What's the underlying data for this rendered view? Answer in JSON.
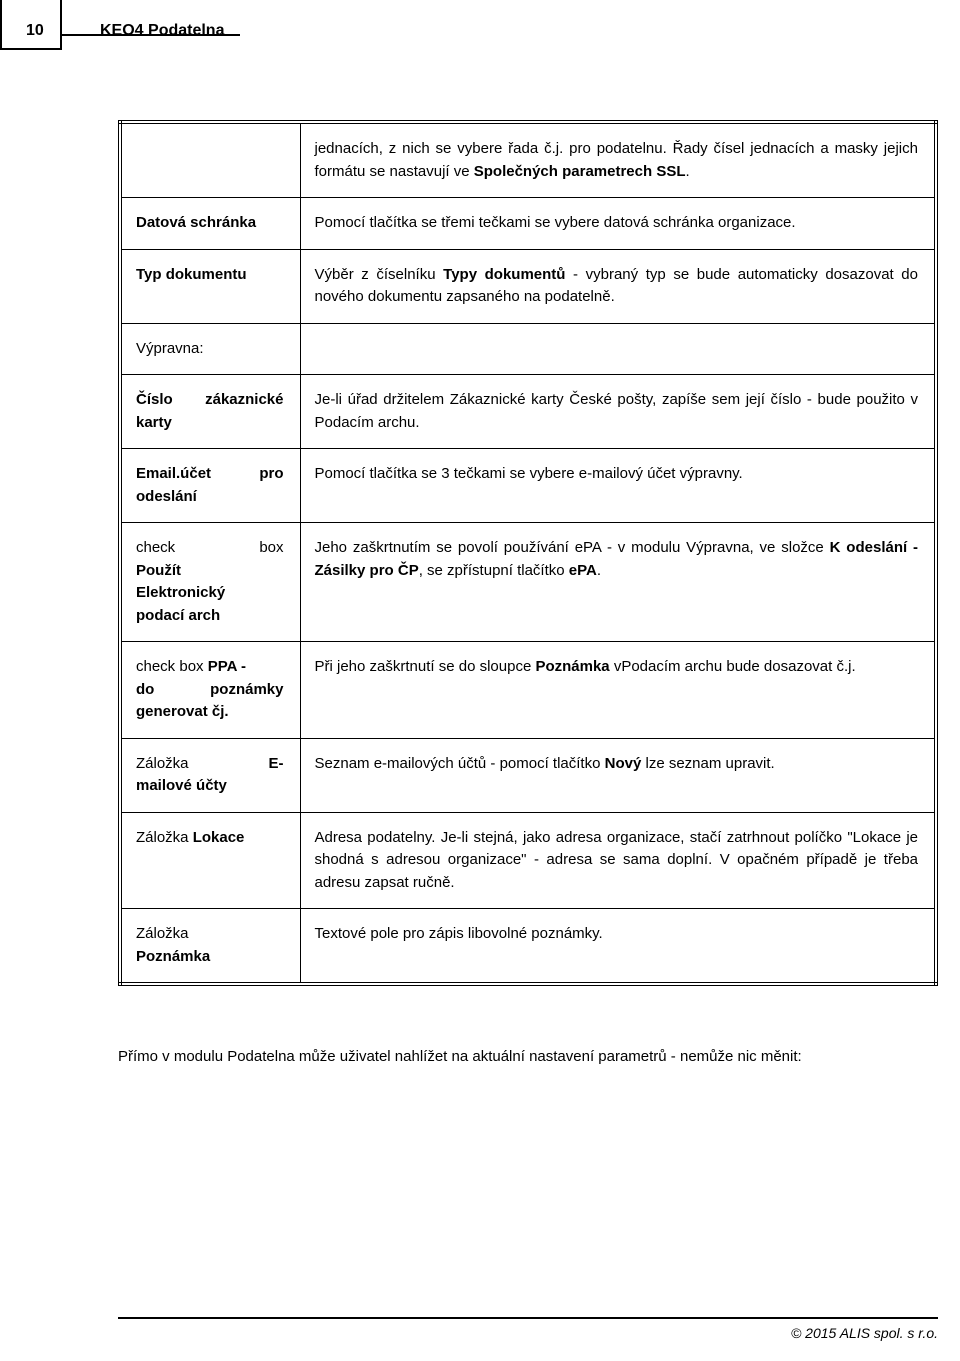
{
  "header": {
    "page_number": "10",
    "title": "KEO4 Podatelna"
  },
  "rows": [
    {
      "label": "",
      "desc_html": "jednacích, z nich se vybere řada č.j. pro podatelnu. Řady čísel jednacích a masky jejich formátu se nastavují ve <b>Společných parametrech SSL</b>."
    },
    {
      "label": "Datová schránka",
      "desc_html": "Pomocí tlačítka se třemi tečkami se vybere datová schránka organizace."
    },
    {
      "label": "Typ dokumentu",
      "desc_html": "Výběr z číselníku <b>Typy dokumentů</b> - vybraný typ se bude automaticky dosazovat do nového dokumentu zapsaného na podatelně."
    },
    {
      "label": "Výpravna:",
      "desc_html": ""
    },
    {
      "label": "Číslo zákaznické karty",
      "desc_html": "Je-li úřad držitelem Zákaznické karty České pošty, zapíše sem její číslo - bude použito v Podacím archu."
    },
    {
      "label": "Email.účet pro odeslání",
      "desc_html": "Pomocí tlačítka se 3 tečkami se vybere e-mailový účet výpravny."
    },
    {
      "label": "check box Použít Elektronický podací arch",
      "desc_html": "Jeho zaškrtnutím se povolí používání ePA - v modulu Výpravna, ve složce <b>K odeslání - Zásilky pro ČP</b>, se zpřístupní tlačítko <b>ePA</b>."
    },
    {
      "label": "check box PPA - do poznámky generovat čj.",
      "desc_html": "Při jeho zaškrtnutí se do sloupce <b>Poznámka</b> vPodacím archu bude dosazovat č.j."
    },
    {
      "label": "Záložka E-mailové účty",
      "desc_html": "Seznam e-mailových účtů - pomocí tlačítko <b>Nový</b> lze seznam upravit."
    },
    {
      "label": "Záložka Lokace",
      "desc_html": "Adresa podatelny. Je-li stejná, jako adresa organizace, stačí zatrhnout políčko \"Lokace je shodná s adresou organizace\" - adresa se sama doplní. V opačném případě je třeba adresu zapsat ručně."
    },
    {
      "label": "Záložka Poznámka",
      "desc_html": "Textové pole pro zápis libovolné poznámky."
    }
  ],
  "below_paragraph": "Přímo v modulu Podatelna může uživatel nahlížet na aktuální nastavení parametrů - nemůže nic měnit:",
  "footer": "© 2015 ALIS spol. s r.o."
}
